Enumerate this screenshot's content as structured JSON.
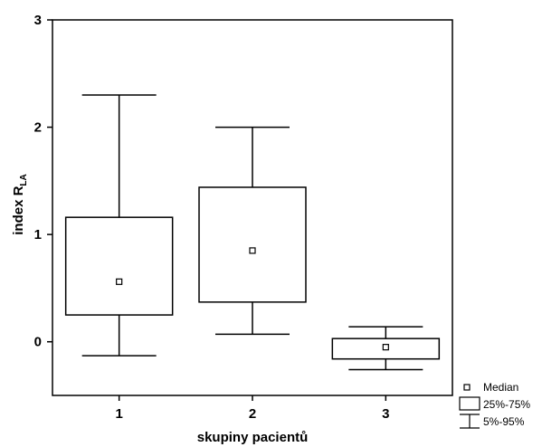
{
  "chart_data": {
    "type": "box",
    "title": "",
    "xlabel": "skupiny pacientů",
    "ylabel": {
      "main": "index R",
      "subscript": "LA"
    },
    "ylim": [
      -0.5,
      3
    ],
    "yticks": [
      0,
      1,
      2,
      3
    ],
    "categories": [
      "1",
      "2",
      "3"
    ],
    "boxes": [
      {
        "category": "1",
        "p5": -0.13,
        "q1": 0.25,
        "median": 0.56,
        "q3": 1.16,
        "p95": 2.3
      },
      {
        "category": "2",
        "p5": 0.07,
        "q1": 0.37,
        "median": 0.85,
        "q3": 1.44,
        "p95": 2.0
      },
      {
        "category": "3",
        "p5": -0.26,
        "q1": -0.16,
        "median": -0.05,
        "q3": 0.03,
        "p95": 0.14
      }
    ],
    "grid": false,
    "legend": {
      "position": "bottom-right",
      "entries": [
        "Median",
        "25%-75%",
        "5%-95%"
      ]
    }
  }
}
